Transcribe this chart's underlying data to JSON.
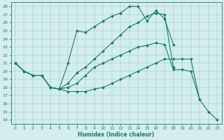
{
  "xlabel": "Humidex (Indice chaleur)",
  "xlim": [
    -0.5,
    23.5
  ],
  "ylim": [
    13.5,
    28.5
  ],
  "yticks": [
    14,
    15,
    16,
    17,
    18,
    19,
    20,
    21,
    22,
    23,
    24,
    25,
    26,
    27,
    28
  ],
  "xticks": [
    0,
    1,
    2,
    3,
    4,
    5,
    6,
    7,
    8,
    9,
    10,
    11,
    12,
    13,
    14,
    15,
    16,
    17,
    18,
    19,
    20,
    21,
    22,
    23
  ],
  "bg_color": "#d4eeed",
  "line_color": "#1a7a6e",
  "lines": [
    [
      21.0,
      20.0,
      19.5,
      19.5,
      18.0,
      17.8,
      21.0,
      25.0,
      24.8,
      25.5,
      26.2,
      26.8,
      27.2,
      28.0,
      28.0,
      26.2,
      27.5,
      26.5,
      23.3,
      null,
      null,
      null,
      null,
      null
    ],
    [
      21.0,
      20.0,
      19.5,
      19.5,
      18.0,
      17.8,
      18.5,
      19.8,
      20.5,
      21.5,
      22.5,
      23.5,
      24.5,
      25.5,
      26.0,
      26.8,
      27.2,
      27.0,
      20.5,
      null,
      null,
      null,
      null,
      null
    ],
    [
      21.0,
      20.0,
      19.5,
      19.5,
      18.0,
      17.8,
      18.0,
      18.5,
      19.5,
      20.5,
      21.0,
      21.5,
      22.0,
      22.5,
      23.0,
      23.2,
      23.5,
      23.3,
      20.2,
      20.2,
      20.0,
      16.5,
      null,
      null
    ],
    [
      21.0,
      20.0,
      19.5,
      19.5,
      18.0,
      17.8,
      17.5,
      17.5,
      17.5,
      17.8,
      18.0,
      18.5,
      19.0,
      19.5,
      20.0,
      20.5,
      21.0,
      21.5,
      21.5,
      21.5,
      21.5,
      16.5,
      15.0,
      14.0
    ]
  ]
}
